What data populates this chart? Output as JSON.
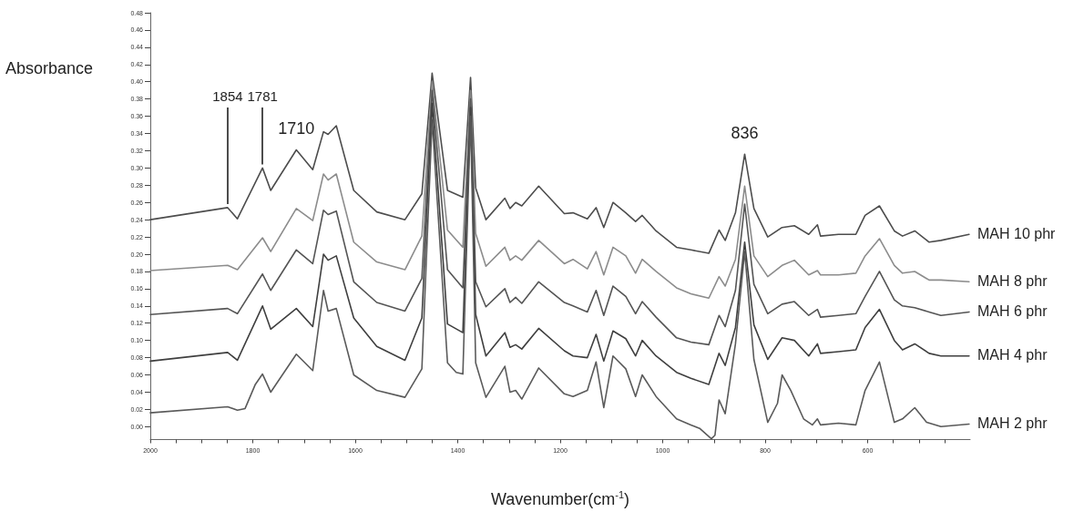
{
  "chart_data": {
    "type": "line",
    "ylabel": "Absorbance",
    "xlabel": "Wavenumber(cm$^{-1}$)",
    "xlim": [
      2000,
      400
    ],
    "xticks": [
      2000,
      {
        "value": 1950,
        "label": null
      },
      {
        "value": 1900,
        "label": null
      },
      {
        "value": 1850,
        "label": null
      },
      1800,
      {
        "value": 1750,
        "label": null
      },
      {
        "value": 1700,
        "label": null
      },
      {
        "value": 1650,
        "label": null
      },
      1600,
      {
        "value": 1550,
        "label": null
      },
      {
        "value": 1500,
        "label": null
      },
      {
        "value": 1450,
        "label": null
      },
      1400,
      {
        "value": 1350,
        "label": null
      },
      {
        "value": 1300,
        "label": null
      },
      {
        "value": 1250,
        "label": null
      },
      1200,
      {
        "value": 1150,
        "label": null
      },
      {
        "value": 1100,
        "label": null
      },
      {
        "value": 1050,
        "label": null
      },
      1000,
      {
        "value": 950,
        "label": null
      },
      {
        "value": 900,
        "label": null
      },
      {
        "value": 850,
        "label": null
      },
      800,
      {
        "value": 750,
        "label": null
      },
      {
        "value": 700,
        "label": null
      },
      {
        "value": 650,
        "label": null
      },
      600,
      {
        "value": 550,
        "label": null
      },
      {
        "value": 500,
        "label": null
      },
      {
        "value": 450,
        "label": null
      }
    ],
    "ylim": [
      -0.015,
      0.48
    ],
    "yticks": [
      {
        "value": 0,
        "label": "0.00"
      },
      0.02,
      0.04,
      0.06,
      0.08,
      {
        "value": 0.1,
        "label": "0.10"
      },
      0.12,
      0.14,
      0.16,
      0.18,
      {
        "value": 0.2,
        "label": "0.20"
      },
      0.22,
      0.24,
      0.26,
      0.28,
      {
        "value": 0.3,
        "label": "0.30"
      },
      0.32,
      0.34,
      0.36,
      0.38,
      {
        "value": 0.4,
        "label": "0.40"
      },
      0.42,
      0.44,
      0.46,
      0.48
    ],
    "grid": false,
    "legend": false,
    "marker": "none",
    "line_style": "solid",
    "x": [
      2000,
      1849,
      1830,
      1781,
      1765,
      1715,
      1683,
      1662,
      1653,
      1637,
      1603,
      1558,
      1503,
      1470,
      1450,
      1420,
      1390,
      1375,
      1365,
      1345,
      1308,
      1298,
      1287,
      1275,
      1242,
      1192,
      1175,
      1147,
      1130,
      1115,
      1097,
      1072,
      1053,
      1040,
      1013,
      973,
      945,
      910,
      890,
      878,
      858,
      840,
      822,
      795,
      767,
      743,
      715,
      698,
      692,
      657,
      623,
      605,
      577,
      548,
      532,
      508,
      480,
      457,
      402
    ],
    "series": [
      {
        "name": "MAH 10 phr",
        "color": "#4d4d4d",
        "values": [
          0.24,
          0.254,
          0.241,
          0.3,
          0.274,
          0.321,
          0.298,
          0.342,
          0.339,
          0.349,
          0.274,
          0.249,
          0.24,
          0.27,
          0.41,
          0.274,
          0.266,
          0.405,
          0.277,
          0.24,
          0.265,
          0.253,
          0.26,
          0.256,
          0.279,
          0.247,
          0.248,
          0.241,
          0.254,
          0.231,
          0.26,
          0.248,
          0.238,
          0.245,
          0.227,
          0.208,
          0.205,
          0.201,
          0.228,
          0.216,
          0.248,
          0.316,
          0.253,
          0.22,
          0.231,
          0.233,
          0.223,
          0.234,
          0.221,
          0.223,
          0.223,
          0.245,
          0.256,
          0.227,
          0.221,
          0.227,
          0.214,
          0.216,
          0.223
        ]
      },
      {
        "name": "MAH 8 phr",
        "color": "#8c8c8c",
        "values": [
          0.181,
          0.187,
          0.182,
          0.219,
          0.203,
          0.253,
          0.239,
          0.293,
          0.286,
          0.293,
          0.214,
          0.191,
          0.182,
          0.221,
          0.4,
          0.228,
          0.208,
          0.39,
          0.224,
          0.186,
          0.208,
          0.193,
          0.198,
          0.193,
          0.216,
          0.189,
          0.194,
          0.183,
          0.203,
          0.176,
          0.208,
          0.198,
          0.178,
          0.194,
          0.18,
          0.161,
          0.154,
          0.149,
          0.174,
          0.163,
          0.194,
          0.279,
          0.198,
          0.174,
          0.187,
          0.193,
          0.176,
          0.181,
          0.176,
          0.176,
          0.178,
          0.198,
          0.218,
          0.187,
          0.178,
          0.18,
          0.17,
          0.17,
          0.168
        ]
      },
      {
        "name": "MAH 6 phr",
        "color": "#555555",
        "values": [
          0.13,
          0.137,
          0.131,
          0.177,
          0.158,
          0.205,
          0.189,
          0.251,
          0.246,
          0.25,
          0.168,
          0.144,
          0.134,
          0.172,
          0.39,
          0.182,
          0.161,
          0.38,
          0.168,
          0.139,
          0.16,
          0.144,
          0.15,
          0.143,
          0.168,
          0.144,
          0.14,
          0.133,
          0.158,
          0.129,
          0.163,
          0.151,
          0.131,
          0.145,
          0.127,
          0.103,
          0.098,
          0.095,
          0.129,
          0.116,
          0.158,
          0.258,
          0.165,
          0.131,
          0.142,
          0.145,
          0.129,
          0.136,
          0.127,
          0.129,
          0.131,
          0.151,
          0.18,
          0.147,
          0.14,
          0.138,
          0.133,
          0.129,
          0.133
        ]
      },
      {
        "name": "MAH 4 phr",
        "color": "#3f3f3f",
        "values": [
          0.076,
          0.086,
          0.077,
          0.14,
          0.113,
          0.137,
          0.116,
          0.2,
          0.193,
          0.198,
          0.126,
          0.093,
          0.077,
          0.126,
          0.375,
          0.119,
          0.109,
          0.37,
          0.13,
          0.082,
          0.109,
          0.092,
          0.095,
          0.09,
          0.114,
          0.088,
          0.082,
          0.08,
          0.107,
          0.076,
          0.111,
          0.102,
          0.082,
          0.1,
          0.082,
          0.063,
          0.056,
          0.049,
          0.085,
          0.071,
          0.115,
          0.214,
          0.118,
          0.078,
          0.103,
          0.1,
          0.082,
          0.096,
          0.085,
          0.087,
          0.089,
          0.115,
          0.136,
          0.1,
          0.089,
          0.096,
          0.085,
          0.082,
          0.082
        ]
      },
      {
        "name": "MAH 2 phr",
        "color": "#5a5a5a",
        "x": [
          2000,
          1849,
          1830,
          1815,
          1795,
          1781,
          1765,
          1715,
          1683,
          1662,
          1653,
          1637,
          1603,
          1558,
          1503,
          1470,
          1450,
          1420,
          1403,
          1390,
          1375,
          1365,
          1345,
          1308,
          1298,
          1287,
          1275,
          1242,
          1192,
          1175,
          1147,
          1130,
          1115,
          1097,
          1072,
          1053,
          1040,
          1013,
          973,
          945,
          928,
          905,
          898,
          890,
          878,
          858,
          840,
          822,
          795,
          776,
          767,
          750,
          725,
          708,
          698,
          692,
          657,
          623,
          605,
          577,
          548,
          532,
          508,
          485,
          457,
          402
        ],
        "values": [
          0.016,
          0.023,
          0.019,
          0.021,
          0.049,
          0.061,
          0.04,
          0.084,
          0.065,
          0.158,
          0.134,
          0.137,
          0.06,
          0.042,
          0.034,
          0.067,
          0.356,
          0.074,
          0.063,
          0.061,
          0.36,
          0.074,
          0.034,
          0.07,
          0.04,
          0.042,
          0.032,
          0.068,
          0.038,
          0.035,
          0.042,
          0.075,
          0.022,
          0.082,
          0.067,
          0.035,
          0.06,
          0.035,
          0.009,
          0.002,
          -0.002,
          -0.014,
          -0.01,
          0.031,
          0.015,
          0.096,
          0.203,
          0.078,
          0.005,
          0.027,
          0.06,
          0.042,
          0.009,
          0.002,
          0.009,
          0.002,
          0.004,
          0.002,
          0.042,
          0.075,
          0.005,
          0.009,
          0.022,
          0.005,
          0.0,
          0.003
        ]
      }
    ],
    "annotations": [
      {
        "text": "1854",
        "x": 1849,
        "y": 0.254
      },
      {
        "text": "1781",
        "x": 1781,
        "y": 0.3
      },
      {
        "text": "1710",
        "x": 1715,
        "y": 0.321
      },
      {
        "text": "836",
        "x": 840,
        "y": 0.316
      }
    ]
  }
}
